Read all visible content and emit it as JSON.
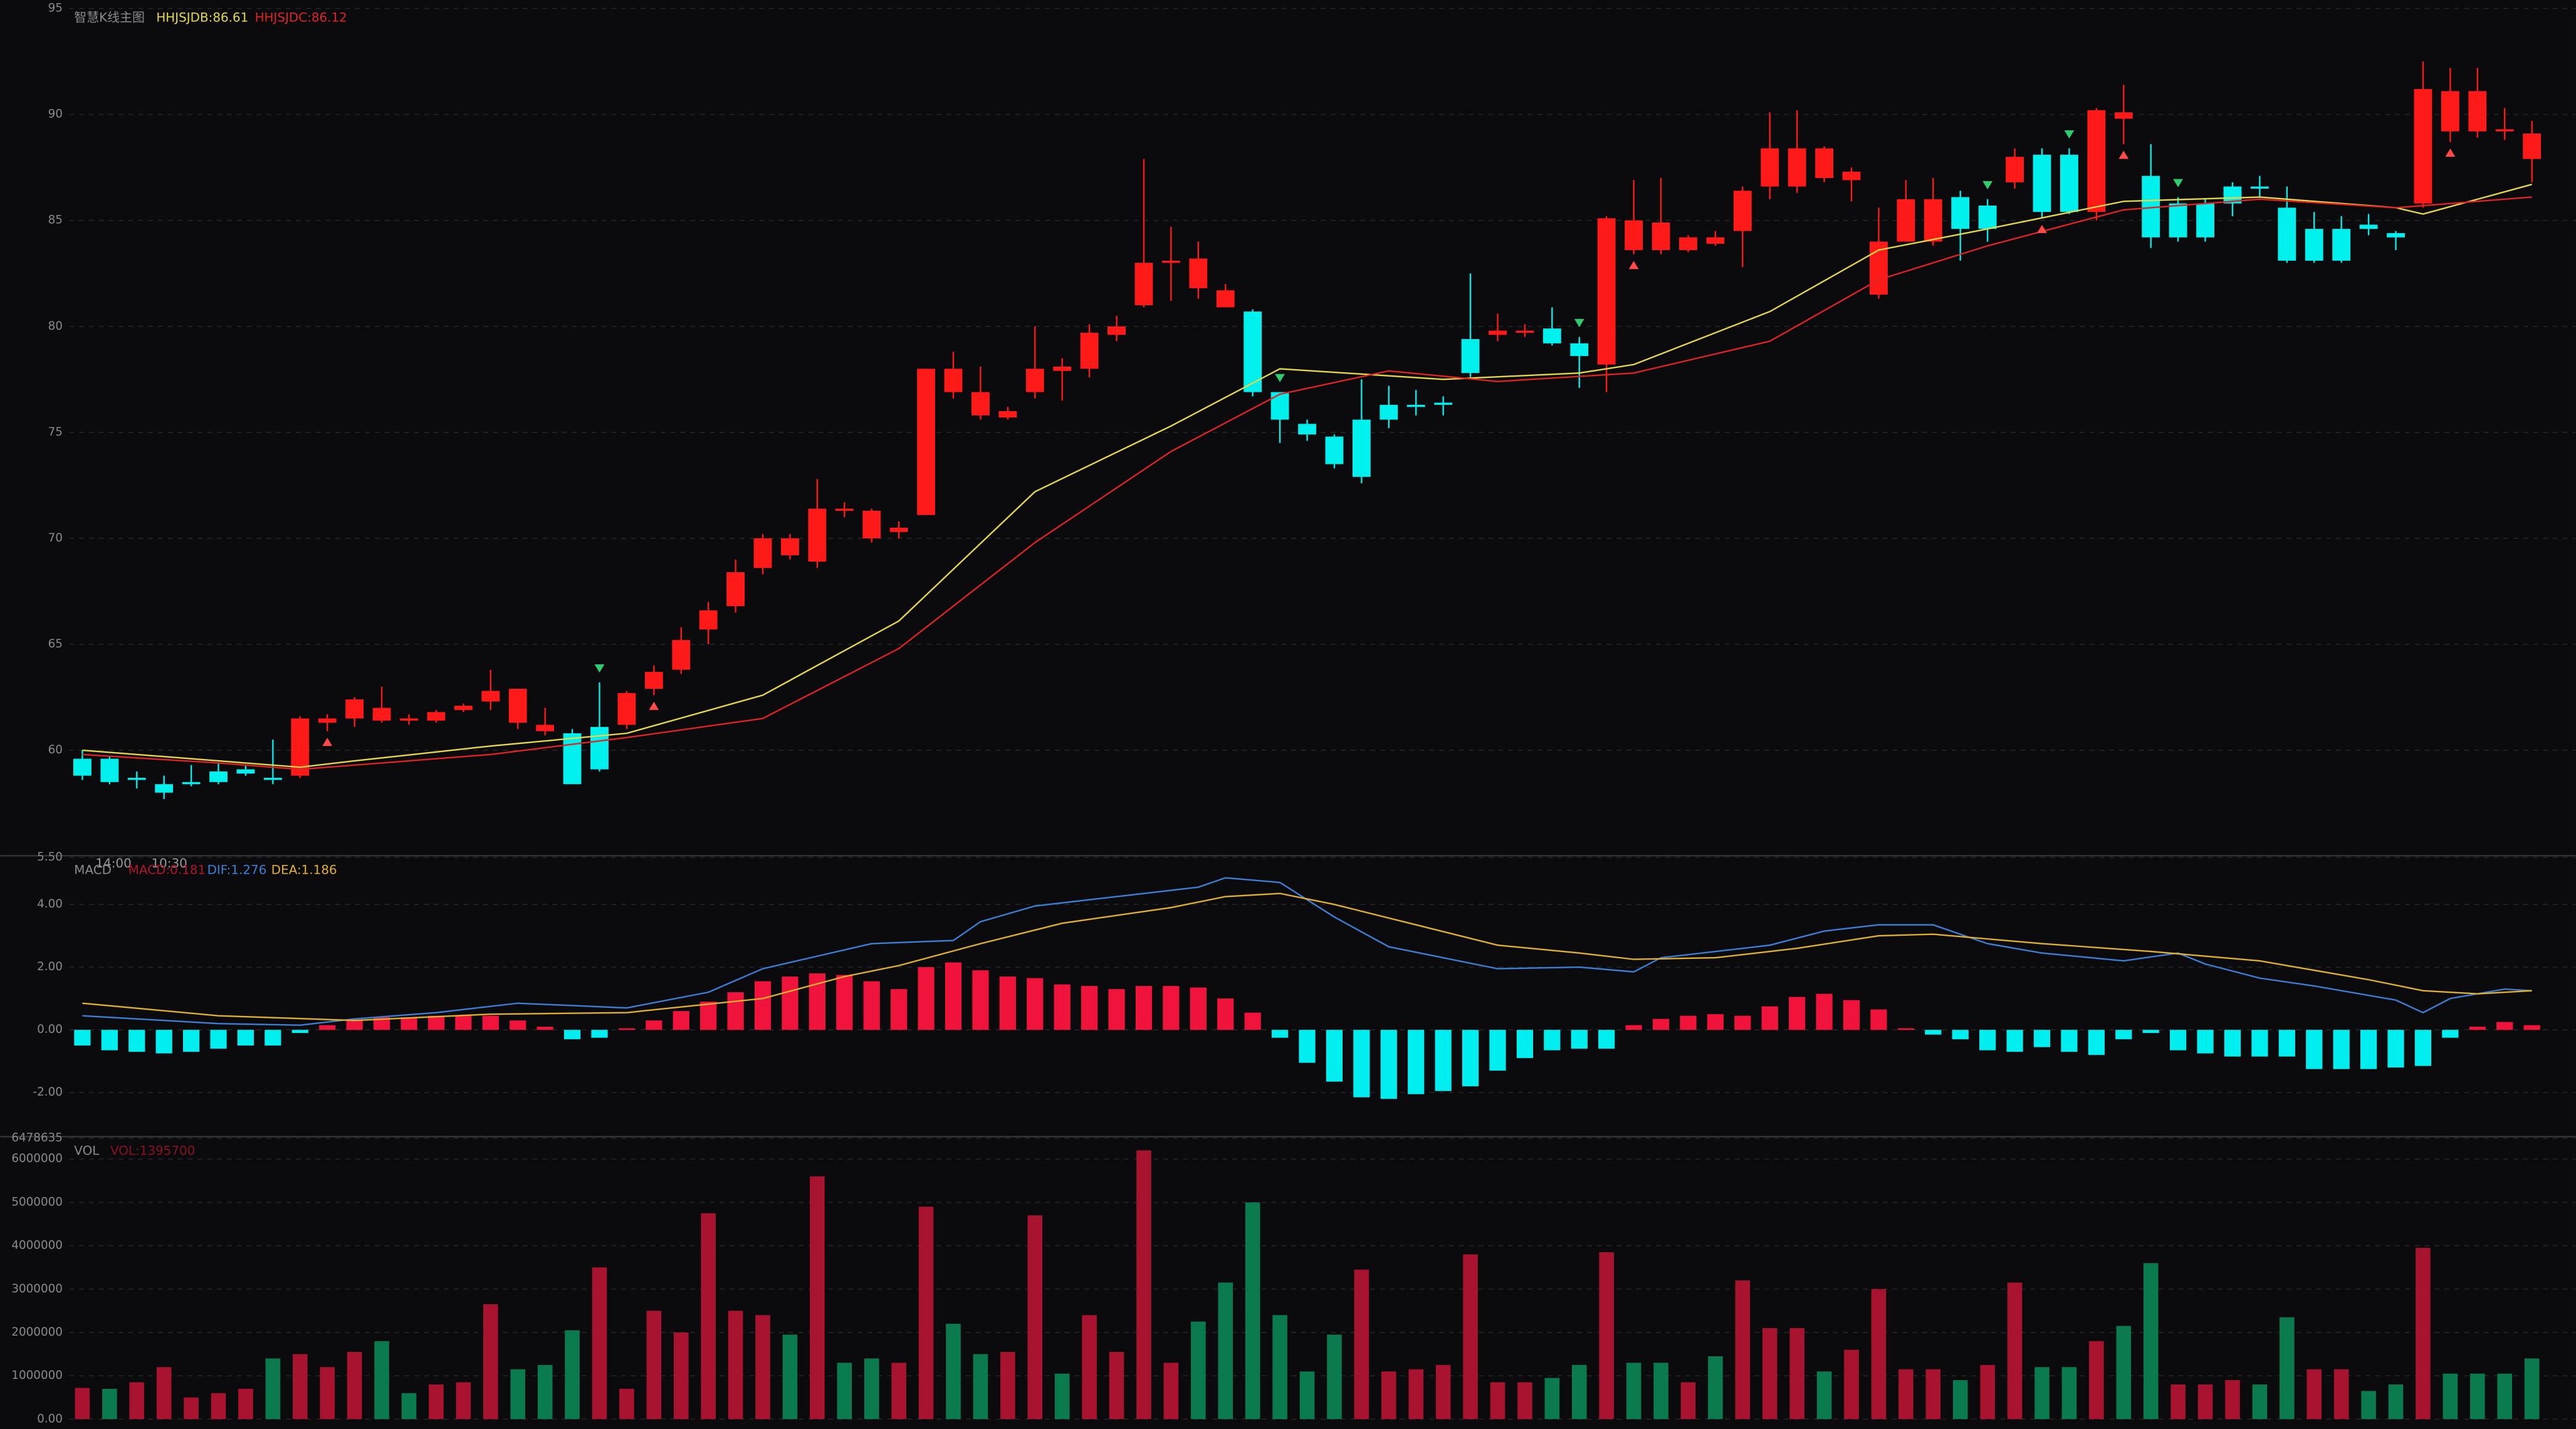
{
  "chart_data": [
    {
      "type": "candlestick",
      "title": "智慧K线主图",
      "open": [
        59.6,
        59.6,
        58.7,
        58.4,
        58.5,
        59.0,
        59.1,
        58.7,
        58.8,
        61.3,
        61.5,
        61.4,
        61.4,
        61.4,
        61.9,
        62.3,
        61.3,
        60.9,
        60.8,
        61.1,
        61.2,
        62.9,
        63.8,
        65.7,
        66.8,
        68.6,
        69.2,
        68.9,
        71.3,
        70.0,
        70.3,
        71.1,
        76.9,
        75.8,
        75.7,
        76.9,
        77.9,
        78.0,
        79.6,
        81.0,
        83.0,
        81.8,
        80.9,
        80.7,
        76.9,
        75.4,
        74.8,
        75.6,
        76.3,
        76.3,
        76.4,
        79.4,
        79.6,
        79.7,
        79.9,
        79.2,
        78.2,
        83.6,
        83.6,
        83.6,
        83.9,
        84.5,
        86.6,
        86.6,
        87.0,
        86.9,
        81.5,
        84.0,
        84.0,
        86.1,
        85.7,
        86.8,
        88.1,
        88.1,
        85.4,
        89.8,
        87.1,
        85.8,
        85.8,
        86.6,
        86.6,
        85.6,
        84.6,
        84.6,
        84.8,
        84.4,
        85.8,
        89.2,
        89.2,
        89.2,
        87.9
      ],
      "high": [
        60.0,
        59.7,
        59.0,
        58.8,
        59.3,
        59.4,
        59.3,
        60.5,
        61.6,
        61.7,
        62.5,
        63.0,
        61.7,
        61.9,
        62.2,
        63.8,
        62.9,
        62.0,
        61.0,
        63.2,
        62.8,
        64.0,
        65.8,
        67.0,
        69.0,
        70.2,
        70.2,
        72.8,
        71.7,
        71.4,
        70.8,
        78.0,
        78.8,
        78.1,
        76.2,
        80.0,
        78.5,
        80.1,
        80.5,
        87.9,
        84.7,
        84.0,
        82.0,
        80.8,
        76.9,
        75.6,
        74.9,
        77.5,
        77.2,
        77.0,
        76.7,
        82.5,
        80.6,
        80.1,
        80.9,
        79.5,
        85.2,
        86.9,
        87.0,
        84.3,
        84.5,
        86.6,
        90.1,
        90.2,
        88.5,
        87.5,
        85.6,
        86.9,
        87.0,
        86.4,
        86.0,
        88.4,
        88.4,
        88.4,
        90.3,
        91.4,
        88.6,
        86.1,
        86.0,
        86.8,
        87.1,
        86.6,
        85.4,
        85.2,
        85.3,
        84.5,
        92.5,
        92.2,
        92.2,
        90.3,
        89.7
      ],
      "low": [
        58.6,
        58.4,
        58.2,
        57.7,
        58.3,
        58.4,
        58.8,
        58.4,
        58.7,
        60.9,
        61.1,
        61.3,
        61.2,
        61.3,
        61.8,
        61.9,
        61.0,
        60.7,
        58.4,
        59.0,
        61.0,
        62.6,
        63.6,
        65.0,
        66.5,
        68.3,
        69.0,
        68.6,
        71.0,
        69.8,
        70.0,
        71.1,
        76.6,
        75.6,
        75.6,
        76.6,
        76.5,
        77.6,
        79.3,
        80.9,
        81.2,
        81.3,
        80.9,
        76.7,
        74.5,
        74.6,
        73.3,
        72.6,
        75.2,
        75.8,
        75.8,
        77.6,
        79.3,
        79.5,
        79.1,
        77.1,
        76.9,
        83.4,
        83.4,
        83.5,
        83.8,
        82.8,
        86.0,
        86.3,
        86.8,
        85.9,
        81.3,
        84.0,
        83.8,
        83.1,
        84.0,
        86.5,
        85.1,
        85.3,
        85.0,
        88.6,
        83.7,
        84.0,
        84.0,
        85.2,
        86.1,
        83.0,
        83.0,
        83.0,
        84.3,
        83.6,
        85.6,
        88.7,
        88.9,
        88.8,
        86.8
      ],
      "close": [
        58.8,
        58.5,
        58.6,
        58.0,
        58.4,
        58.5,
        58.9,
        58.6,
        61.5,
        61.5,
        62.4,
        62.0,
        61.5,
        61.8,
        62.1,
        62.8,
        62.9,
        61.2,
        58.4,
        59.1,
        62.7,
        63.7,
        65.2,
        66.6,
        68.4,
        70.0,
        70.0,
        71.4,
        71.4,
        71.3,
        70.5,
        78.0,
        78.0,
        76.9,
        76.0,
        78.0,
        78.1,
        79.7,
        80.0,
        83.0,
        83.1,
        83.2,
        81.7,
        76.9,
        75.6,
        74.9,
        73.5,
        72.9,
        75.6,
        76.2,
        76.3,
        77.8,
        79.8,
        79.8,
        79.2,
        78.6,
        85.1,
        85.0,
        84.9,
        84.2,
        84.2,
        86.4,
        88.4,
        88.4,
        88.4,
        87.3,
        84.0,
        86.0,
        86.0,
        84.6,
        84.6,
        88.0,
        85.4,
        85.4,
        90.2,
        90.1,
        84.2,
        84.2,
        84.2,
        85.8,
        86.5,
        83.1,
        83.1,
        83.1,
        84.6,
        84.2,
        91.2,
        91.1,
        91.1,
        89.3,
        89.1
      ],
      "up_color": "#ff1a1a",
      "down_color": "#00f0ee",
      "series": [
        {
          "name": "HHJSJDB:86.61",
          "color": "#e6d84a",
          "x": [
            0,
            5,
            8,
            10,
            15,
            20,
            25,
            30,
            35,
            40,
            44,
            50,
            55,
            57,
            62,
            66,
            70,
            75,
            80,
            85,
            86,
            90
          ],
          "values": [
            60.0,
            59.5,
            59.2,
            59.5,
            60.2,
            60.8,
            62.6,
            66.1,
            72.2,
            75.3,
            78.0,
            77.5,
            77.8,
            78.2,
            80.7,
            83.6,
            84.6,
            85.9,
            86.1,
            85.6,
            85.3,
            86.7
          ]
        },
        {
          "name": "HHJSJDC:86.12",
          "color": "#e02424",
          "x": [
            0,
            5,
            8,
            10,
            15,
            20,
            25,
            30,
            35,
            40,
            44,
            48,
            52,
            57,
            62,
            66,
            70,
            75,
            80,
            85,
            90
          ],
          "values": [
            59.8,
            59.4,
            59.1,
            59.3,
            59.8,
            60.6,
            61.5,
            64.8,
            69.8,
            74.1,
            76.8,
            77.9,
            77.4,
            77.8,
            79.3,
            82.2,
            83.8,
            85.5,
            86.0,
            85.6,
            86.1
          ]
        }
      ],
      "sell_signals": [
        19,
        44,
        55,
        70,
        73,
        77
      ],
      "buy_signals": [
        9,
        21,
        57,
        72,
        75,
        87
      ],
      "ylim": [
        55.1,
        95.4
      ],
      "yticks": [
        60,
        65,
        70,
        75,
        80,
        85,
        90,
        95
      ],
      "grid": true
    },
    {
      "type": "macd",
      "title": "MACD",
      "label": "MACD:0.181",
      "time_labels": [
        "14:00",
        "10:30"
      ],
      "values": [
        -0.5,
        -0.65,
        -0.7,
        -0.75,
        -0.7,
        -0.6,
        -0.5,
        -0.5,
        -0.1,
        0.15,
        0.3,
        0.4,
        0.4,
        0.45,
        0.45,
        0.45,
        0.3,
        0.1,
        -0.3,
        -0.25,
        0.05,
        0.3,
        0.6,
        0.9,
        1.2,
        1.55,
        1.7,
        1.8,
        1.75,
        1.55,
        1.3,
        2.0,
        2.15,
        1.9,
        1.7,
        1.65,
        1.45,
        1.4,
        1.3,
        1.4,
        1.4,
        1.35,
        1.0,
        0.55,
        -0.25,
        -1.05,
        -1.65,
        -2.15,
        -2.2,
        -2.05,
        -1.95,
        -1.8,
        -1.3,
        -0.9,
        -0.65,
        -0.6,
        -0.6,
        0.15,
        0.35,
        0.45,
        0.5,
        0.45,
        0.75,
        1.05,
        1.15,
        0.95,
        0.65,
        0.05,
        -0.15,
        -0.3,
        -0.65,
        -0.7,
        -0.55,
        -0.7,
        -0.8,
        -0.3,
        -0.1,
        -0.65,
        -0.75,
        -0.85,
        -0.85,
        -0.85,
        -1.25,
        -1.25,
        -1.25,
        -1.2,
        -1.15,
        -0.25,
        0.1,
        0.25,
        0.15
      ],
      "pos_color": "#f0143c",
      "neg_color": "#00eef0",
      "series": [
        {
          "name": "DIF:1.276",
          "color": "#3d7fd6",
          "x": [
            0,
            5,
            8,
            10,
            13,
            16,
            20,
            23,
            25,
            27,
            29,
            32,
            33,
            35,
            38,
            41,
            42,
            44,
            46,
            48,
            52,
            55,
            57,
            58,
            62,
            64,
            66,
            68,
            70,
            72,
            75,
            77,
            78,
            80,
            82,
            85,
            86,
            87,
            89,
            90
          ],
          "values": [
            0.45,
            0.2,
            0.15,
            0.35,
            0.55,
            0.85,
            0.7,
            1.2,
            1.95,
            2.35,
            2.75,
            2.85,
            3.45,
            3.95,
            4.25,
            4.55,
            4.85,
            4.7,
            3.6,
            2.65,
            1.95,
            2.0,
            1.85,
            2.3,
            2.7,
            3.15,
            3.35,
            3.35,
            2.75,
            2.45,
            2.2,
            2.45,
            2.1,
            1.65,
            1.4,
            0.95,
            0.55,
            1.0,
            1.3,
            1.25
          ]
        },
        {
          "name": "DEA:1.186",
          "color": "#e0b030",
          "x": [
            0,
            5,
            10,
            15,
            20,
            25,
            28,
            30,
            33,
            36,
            40,
            42,
            44,
            46,
            49,
            52,
            55,
            57,
            60,
            63,
            66,
            68,
            72,
            76,
            80,
            84,
            86,
            88,
            90
          ],
          "values": [
            0.85,
            0.45,
            0.3,
            0.5,
            0.55,
            1.0,
            1.7,
            2.05,
            2.75,
            3.4,
            3.9,
            4.25,
            4.35,
            4.0,
            3.35,
            2.7,
            2.45,
            2.25,
            2.3,
            2.6,
            3.0,
            3.05,
            2.75,
            2.5,
            2.2,
            1.6,
            1.25,
            1.15,
            1.25
          ]
        }
      ],
      "ylim": [
        -3.3,
        5.5
      ],
      "yticks": [
        {
          "value": 5.5,
          "label": "5.50"
        },
        {
          "value": 4,
          "label": "4.00"
        },
        {
          "value": 2,
          "label": "2.00"
        },
        {
          "value": 0,
          "label": "0.00"
        },
        {
          "value": -2,
          "label": "-2.00"
        }
      ],
      "grid": true
    },
    {
      "type": "bar",
      "title": "VOL",
      "label": "VOL:1395700",
      "values": [
        720000,
        700000,
        850000,
        1200000,
        500000,
        600000,
        700000,
        1400000,
        1500000,
        1200000,
        1550000,
        1800000,
        600000,
        800000,
        850000,
        2650000,
        1150000,
        1250000,
        2050000,
        3500000,
        700000,
        2500000,
        2000000,
        4750000,
        2500000,
        2400000,
        1950000,
        5600000,
        1300000,
        1400000,
        1300000,
        4900000,
        2200000,
        1500000,
        1550000,
        4700000,
        1050000,
        2400000,
        1550000,
        6200000,
        1300000,
        2250000,
        3150000,
        5000000,
        2400000,
        1100000,
        1950000,
        3450000,
        1100000,
        1150000,
        1250000,
        3800000,
        850000,
        850000,
        950000,
        1250000,
        3850000,
        1300000,
        1300000,
        850000,
        1450000,
        3200000,
        2100000,
        2100000,
        1100000,
        1600000,
        3000000,
        1150000,
        1150000,
        900000,
        1250000,
        3150000,
        1200000,
        1200000,
        1800000,
        2150000,
        3600000,
        800000,
        800000,
        900000,
        800000,
        2350000,
        1150000,
        1150000,
        650000,
        800000,
        3950000,
        1050000,
        1050000,
        1050000,
        1400000
      ],
      "bar_colors": [
        "#a8142f",
        "#0b7a4f",
        "#a8142f",
        "#a8142f",
        "#a8142f",
        "#a8142f",
        "#a8142f",
        "#0b7a4f",
        "#a8142f",
        "#a8142f",
        "#a8142f",
        "#0b7a4f",
        "#0b7a4f",
        "#a8142f",
        "#a8142f",
        "#a8142f",
        "#0b7a4f",
        "#0b7a4f",
        "#0b7a4f",
        "#a8142f",
        "#a8142f",
        "#a8142f",
        "#a8142f",
        "#a8142f",
        "#a8142f",
        "#a8142f",
        "#0b7a4f",
        "#a8142f",
        "#0b7a4f",
        "#0b7a4f",
        "#a8142f",
        "#a8142f",
        "#0b7a4f",
        "#0b7a4f",
        "#a8142f",
        "#a8142f",
        "#0b7a4f",
        "#a8142f",
        "#a8142f",
        "#a8142f",
        "#a8142f",
        "#0b7a4f",
        "#0b7a4f",
        "#0b7a4f",
        "#0b7a4f",
        "#0b7a4f",
        "#0b7a4f",
        "#a8142f",
        "#a8142f",
        "#a8142f",
        "#a8142f",
        "#a8142f",
        "#a8142f",
        "#a8142f",
        "#0b7a4f",
        "#0b7a4f",
        "#a8142f",
        "#0b7a4f",
        "#0b7a4f",
        "#a8142f",
        "#0b7a4f",
        "#a8142f",
        "#a8142f",
        "#a8142f",
        "#0b7a4f",
        "#a8142f",
        "#a8142f",
        "#a8142f",
        "#a8142f",
        "#0b7a4f",
        "#a8142f",
        "#a8142f",
        "#0b7a4f",
        "#0b7a4f",
        "#a8142f",
        "#0b7a4f",
        "#0b7a4f",
        "#a8142f",
        "#a8142f",
        "#a8142f",
        "#0b7a4f",
        "#0b7a4f",
        "#a8142f",
        "#a8142f",
        "#0b7a4f",
        "#0b7a4f",
        "#a8142f",
        "#0b7a4f",
        "#0b7a4f",
        "#0b7a4f",
        "#0b7a4f"
      ],
      "ylim": [
        0,
        6478635
      ],
      "yticks": [
        {
          "value": 0,
          "label": "0.00"
        },
        1000000,
        2000000,
        3000000,
        4000000,
        5000000,
        6000000,
        {
          "value": 6478635,
          "label": "6478635"
        }
      ],
      "grid": true
    }
  ]
}
